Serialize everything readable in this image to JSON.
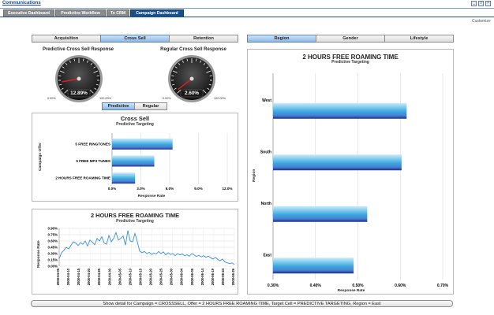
{
  "app": {
    "title": "Communications"
  },
  "tabs": [
    {
      "label": "Executive Dashboard",
      "active": false
    },
    {
      "label": "Predictive Workflow",
      "active": false
    },
    {
      "label": "To CRM",
      "active": false
    },
    {
      "label": "Campaign Dashboard",
      "active": true
    }
  ],
  "customize_label": "Customize",
  "left_segments": [
    {
      "label": "Acquisition",
      "active": false
    },
    {
      "label": "Cross Sell",
      "active": true
    },
    {
      "label": "Retention",
      "active": false
    }
  ],
  "right_segments": [
    {
      "label": "Region",
      "active": true
    },
    {
      "label": "Gender",
      "active": false
    },
    {
      "label": "Lifestyle",
      "active": false
    }
  ],
  "gauges": [
    {
      "title": "Predictive Cross Sell Response",
      "value_label": "12.89%",
      "value": 12.89,
      "min_label": "0.00%",
      "max_label": "100.00%"
    },
    {
      "title": "Regular Cross Sell Response",
      "value_label": "2.60%",
      "value": 2.6,
      "min_label": "0.00%",
      "max_label": "100.00%"
    }
  ],
  "toggle": [
    {
      "label": "Predictive",
      "active": true
    },
    {
      "label": "Regular",
      "active": false
    }
  ],
  "status_text": "Show detail for Campaign = CROSSSELL, Offer = 2 HOURS FREE ROAMING TIME, Target Cell = PREDICTIVE TARGETING, Region = East",
  "colors": {
    "accent": "#1a4f86",
    "bar_light": "#c9ecfb",
    "bar_mid": "#3aa7e0",
    "bar_dark": "#1c2e8a",
    "line": "#3a8fd6"
  },
  "chart_data": [
    {
      "type": "bar",
      "orientation": "horizontal",
      "title": "Cross Sell",
      "subtitle": "Predictive Targeting",
      "xlabel": "Response Rate",
      "ylabel": "Campaign Offer",
      "categories": [
        "5 FREE RINGTONES",
        "5 FREE MP3 TUNES",
        "2 HOURS FREE ROAMING TIME"
      ],
      "values": [
        6.3,
        4.4,
        2.4
      ],
      "xlim": [
        0,
        12
      ],
      "xticks": [
        "0.0%",
        "3.0%",
        "6.0%",
        "9.0%",
        "12.0%"
      ],
      "grid": true
    },
    {
      "type": "line",
      "title": "2 HOURS FREE ROAMING TIME",
      "subtitle": "Predictive Targeting",
      "ylabel": "Response Rate",
      "ylim": [
        0,
        0.9
      ],
      "yticks": [
        "0.90%",
        "0.75%",
        "0.60%",
        "0.45%",
        "0.30%",
        "0.15%",
        "0.00%"
      ],
      "xticks": [
        "2008-04-05",
        "2008-04-10",
        "2008-04-15",
        "2008-04-20",
        "2008-04-25",
        "2008-04-30",
        "2008-05-05",
        "2008-05-10",
        "2008-05-15",
        "2008-05-20",
        "2008-05-25",
        "2008-05-30",
        "2008-06-04",
        "2008-06-09",
        "2008-06-14",
        "2008-06-19",
        "2008-06-24",
        "2008-06-29"
      ],
      "values": [
        0.18,
        0.32,
        0.38,
        0.45,
        0.41,
        0.5,
        0.58,
        0.55,
        0.49,
        0.56,
        0.52,
        0.6,
        0.48,
        0.62,
        0.57,
        0.51,
        0.66,
        0.6,
        0.7,
        0.55,
        0.52,
        0.73,
        0.58,
        0.66,
        0.8,
        0.62,
        0.66,
        0.72,
        0.5,
        0.85,
        0.6,
        0.58,
        0.78,
        0.58,
        0.36,
        0.32,
        0.35,
        0.3,
        0.33,
        0.28,
        0.31,
        0.29,
        0.35,
        0.3,
        0.34,
        0.27,
        0.32,
        0.28,
        0.3,
        0.25,
        0.3,
        0.27,
        0.29,
        0.25,
        0.27,
        0.24,
        0.3,
        0.27,
        0.23,
        0.26,
        0.22,
        0.25,
        0.21,
        0.24,
        0.2,
        0.17,
        0.21,
        0.16,
        0.13,
        0.17,
        0.1,
        0.08,
        0.06,
        0.08,
        0.04
      ],
      "grid": true
    },
    {
      "type": "bar",
      "orientation": "horizontal",
      "title": "2 HOURS FREE ROAMING TIME",
      "subtitle": "Predictive Targeting",
      "xlabel": "Response Rate",
      "ylabel": "Region",
      "categories": [
        "West",
        "South",
        "North",
        "East"
      ],
      "values": [
        0.615,
        0.603,
        0.522,
        0.49
      ],
      "xlim": [
        0.3,
        0.7
      ],
      "xticks": [
        "0.30%",
        "0.40%",
        "0.50%",
        "0.60%",
        "0.70%"
      ],
      "grid": true
    }
  ]
}
